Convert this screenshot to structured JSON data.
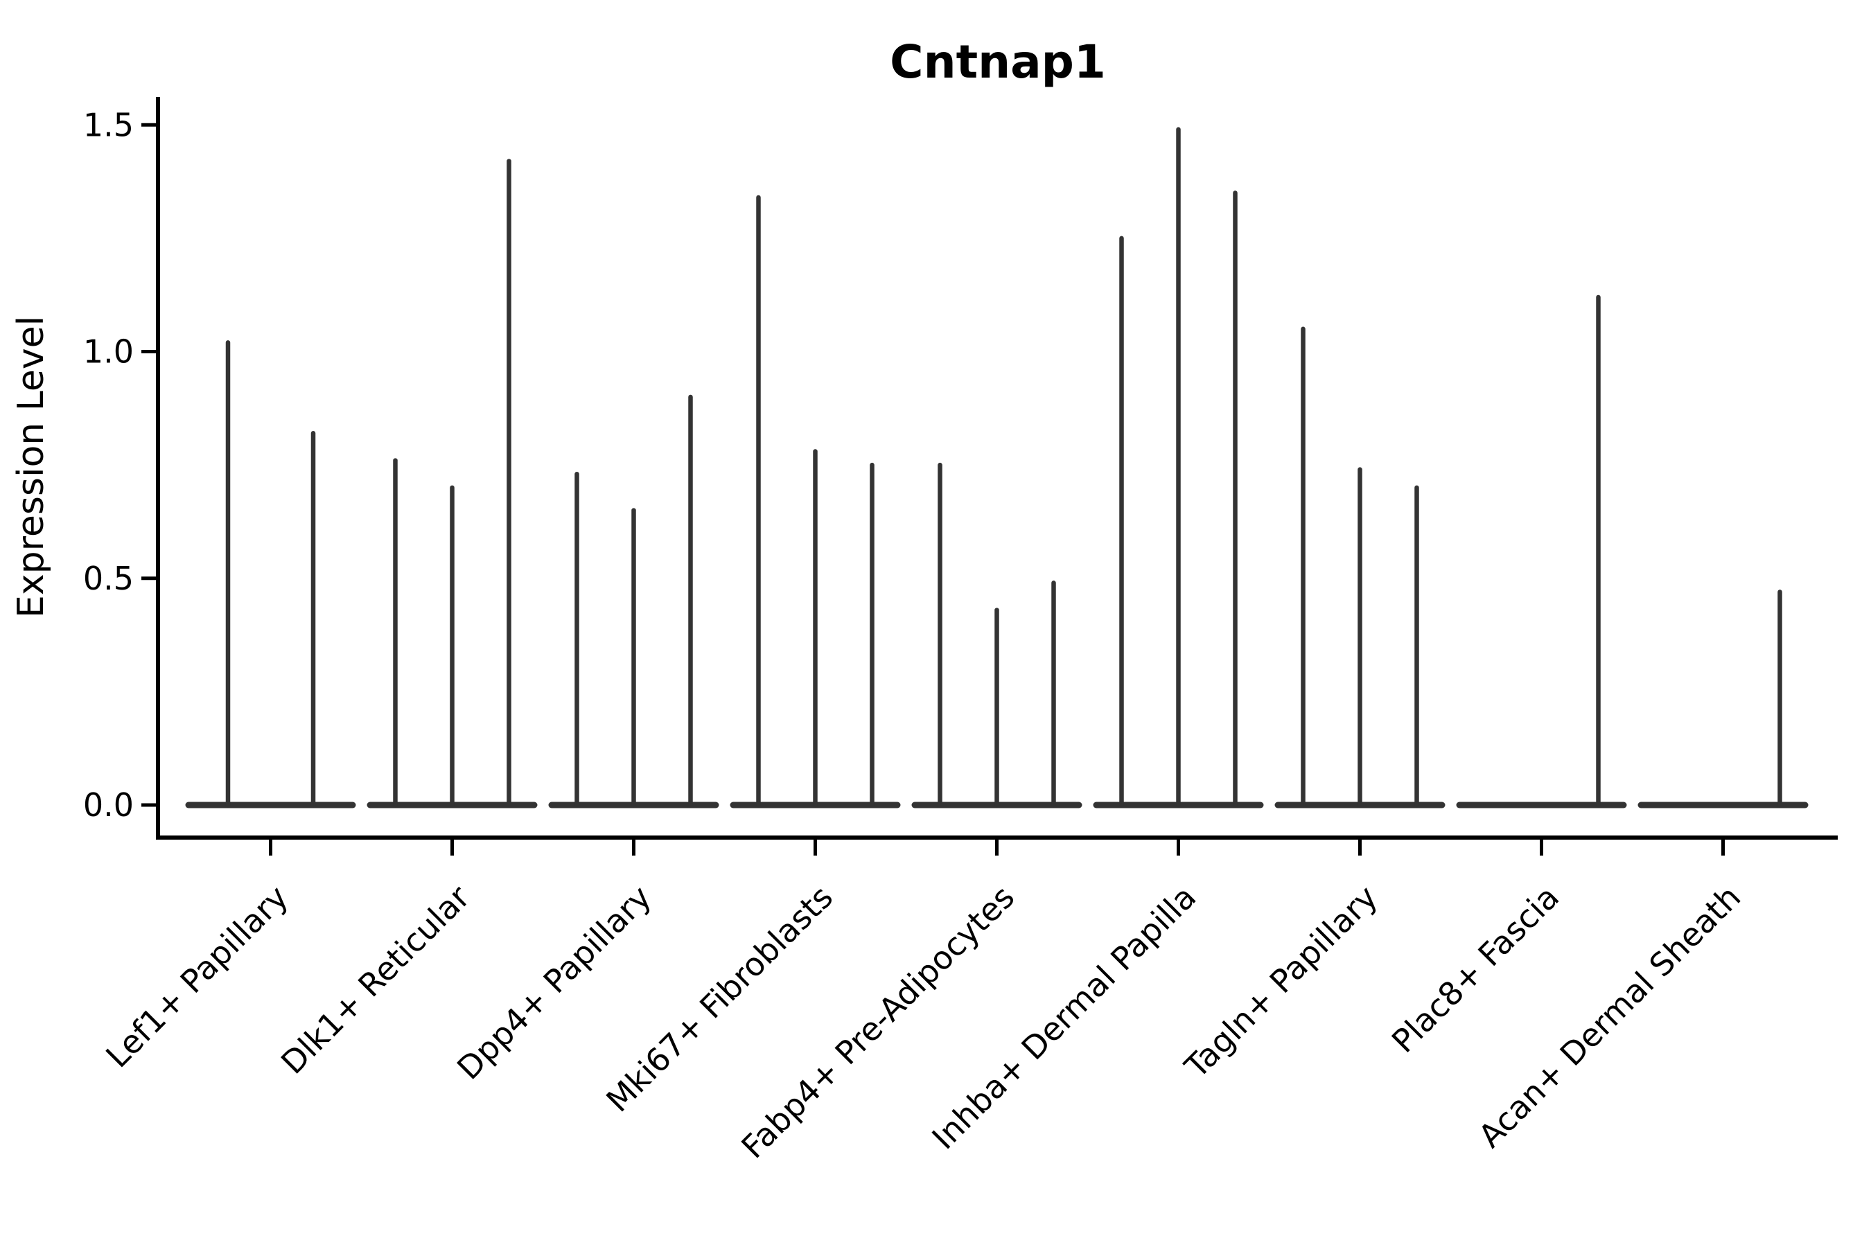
{
  "chart_data": {
    "type": "violin",
    "title": "Cntnap1",
    "ylabel": "Expression Level",
    "xlabel": "",
    "ylim": [
      0,
      1.5
    ],
    "ytick_values": [
      0,
      0.5,
      1.0,
      1.5
    ],
    "ytick_labels": [
      "0.0",
      "0.5",
      "1.0",
      "1.5"
    ],
    "grid": false,
    "legend": null,
    "categories": [
      "Lef1+ Papillary",
      "Dlk1+ Reticular",
      "Dpp4+ Papillary",
      "Mki67+ Fibroblasts",
      "Fabp4+ Pre-Adipocytes",
      "Inhba+ Dermal Papilla",
      "Tagln+ Papillary",
      "Plac8+ Fascia",
      "Acan+ Dermal Sheath"
    ],
    "violin_peaks": [
      [
        1.02,
        0.82
      ],
      [
        0.76,
        0.7,
        1.42
      ],
      [
        0.73,
        0.65,
        0.9
      ],
      [
        1.34,
        0.78,
        0.75
      ],
      [
        0.75,
        0.43,
        0.49
      ],
      [
        1.25,
        1.49,
        1.35
      ],
      [
        1.05,
        0.74,
        0.7
      ],
      [
        0,
        0,
        1.12
      ],
      [
        0,
        0,
        0.47
      ]
    ],
    "colors": {
      "violin": "#333333",
      "axis": "#000000",
      "text": "#000000",
      "background": "#ffffff"
    }
  }
}
